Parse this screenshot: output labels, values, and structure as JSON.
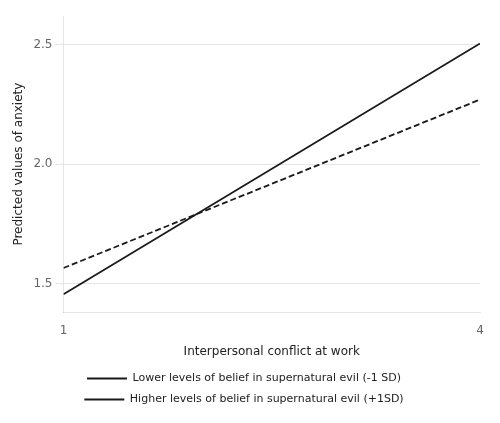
{
  "chart_data": {
    "type": "line",
    "xlabel": "Interpersonal conflict at work",
    "ylabel": "Predicted values of anxiety",
    "x": [
      1,
      4
    ],
    "series": [
      {
        "name": "Lower levels of belief in supernatural evil (-1 SD)",
        "color": "#1a1a1a",
        "line_style": "solid",
        "values": [
          1.455,
          2.505
        ]
      },
      {
        "name": "Higher levels of belief in supernatural evil (+1SD)",
        "color": "#1a1a1a",
        "line_style": "dashed",
        "values": [
          1.565,
          2.27
        ]
      }
    ],
    "xlim": [
      1,
      4
    ],
    "ylim": [
      1.38,
      2.62
    ],
    "xticks": [
      1,
      4
    ],
    "yticks": [
      {
        "value": 1.5,
        "label": "1.5"
      },
      {
        "value": 2.0,
        "label": "2.0"
      },
      {
        "value": 2.5,
        "label": "2.5"
      }
    ],
    "grid": "y",
    "legend": "bottom"
  }
}
